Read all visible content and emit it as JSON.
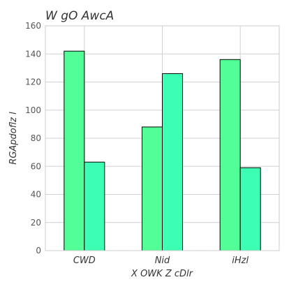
{
  "chart_data": {
    "type": "bar",
    "title": "W gO AwcA",
    "xlabel": "X OWK Z cDlr",
    "ylabel": "RGApdoflz l",
    "categories": [
      "CWD",
      "Nid",
      "iHzl"
    ],
    "series": [
      {
        "values": [
          142,
          88,
          136
        ],
        "color": "#52ff96"
      },
      {
        "values": [
          63,
          126,
          59
        ],
        "color": "#3dffb4"
      }
    ],
    "ylim": [
      0,
      160
    ],
    "yticks": [
      0,
      20,
      40,
      60,
      80,
      100,
      120,
      140,
      160
    ],
    "grid": true,
    "legend": "none"
  }
}
